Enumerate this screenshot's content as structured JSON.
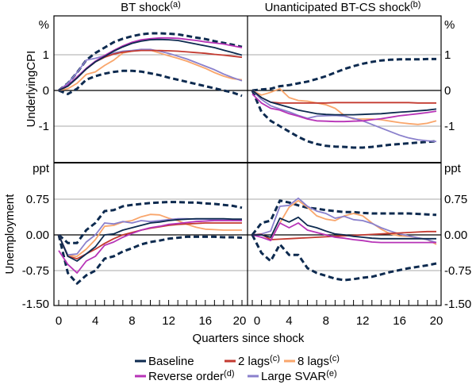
{
  "colors": {
    "Baseline": "#0d2a4f",
    "2 lags": "#c33a30",
    "8 lags": "#f9a66c",
    "Reverse order": "#b733b7",
    "Large SVAR": "#8a80cc",
    "bands": "#0d2a4f"
  },
  "x_axis": {
    "label": "Quarters since shock",
    "ticks": [
      0,
      4,
      8,
      12,
      16,
      20
    ],
    "range": [
      0,
      20
    ]
  },
  "legend": [
    {
      "name": "Baseline",
      "sup": ""
    },
    {
      "name": "2 lags",
      "sup": "(c)"
    },
    {
      "name": "8 lags",
      "sup": "(c)"
    },
    {
      "name": "Reverse order",
      "sup": "(d)"
    },
    {
      "name": "Large SVAR",
      "sup": "(e)"
    }
  ],
  "columns": [
    {
      "title": "BT shock",
      "sup": "(a)"
    },
    {
      "title": "Unanticipated BT-CS shock",
      "sup": "(b)"
    }
  ],
  "rows": [
    {
      "ylabel": "UnderlyingCPI",
      "unit": "%",
      "ticks": [
        "1",
        "0",
        "-1"
      ],
      "tick_values": [
        1,
        0,
        -1
      ],
      "ylim": [
        -2,
        2.1
      ]
    },
    {
      "ylabel": "Unemployment",
      "unit": "ppt",
      "ticks": [
        "0.75",
        "0.00",
        "-0.75",
        "-1.50"
      ],
      "tick_values": [
        0.75,
        0,
        -0.75,
        -1.5
      ],
      "ylim": [
        -1.5,
        1.5
      ]
    }
  ],
  "chart_data": [
    {
      "type": "line",
      "panel": "BT shock / UnderlyingCPI",
      "x": [
        0,
        1,
        2,
        3,
        4,
        5,
        6,
        7,
        8,
        9,
        10,
        11,
        12,
        13,
        14,
        15,
        16,
        17,
        18,
        19,
        20
      ],
      "bands": {
        "upper": [
          0,
          0.2,
          0.5,
          0.85,
          1.05,
          1.2,
          1.35,
          1.45,
          1.52,
          1.57,
          1.6,
          1.6,
          1.59,
          1.57,
          1.53,
          1.48,
          1.44,
          1.38,
          1.33,
          1.28,
          1.22
        ],
        "lower": [
          0,
          -0.1,
          0.05,
          0.3,
          0.4,
          0.47,
          0.52,
          0.55,
          0.55,
          0.53,
          0.48,
          0.43,
          0.36,
          0.3,
          0.24,
          0.18,
          0.12,
          0.06,
          0,
          -0.06,
          -0.15
        ]
      },
      "series": [
        {
          "name": "Baseline",
          "values": [
            0,
            0.12,
            0.35,
            0.6,
            0.8,
            0.95,
            1.1,
            1.22,
            1.32,
            1.38,
            1.42,
            1.43,
            1.42,
            1.4,
            1.35,
            1.3,
            1.25,
            1.2,
            1.13,
            1.06,
            0.99
          ]
        },
        {
          "name": "2 lags",
          "values": [
            0,
            0.12,
            0.35,
            0.6,
            0.8,
            0.93,
            1.02,
            1.07,
            1.1,
            1.12,
            1.12,
            1.12,
            1.11,
            1.1,
            1.08,
            1.06,
            1.04,
            1.01,
            0.99,
            0.96,
            0.93
          ]
        },
        {
          "name": "8 lags",
          "values": [
            0,
            0.05,
            0.2,
            0.45,
            0.52,
            0.7,
            0.85,
            1.05,
            1.1,
            1.15,
            1.13,
            1.05,
            0.97,
            0.9,
            0.82,
            0.72,
            0.62,
            0.5,
            0.4,
            0.33,
            0.3
          ]
        },
        {
          "name": "Reverse order",
          "values": [
            0,
            0.15,
            0.38,
            0.62,
            0.82,
            0.98,
            1.12,
            1.25,
            1.35,
            1.42,
            1.45,
            1.47,
            1.47,
            1.46,
            1.43,
            1.4,
            1.36,
            1.33,
            1.3,
            1.25,
            1.2
          ]
        },
        {
          "name": "Large SVAR",
          "values": [
            0,
            0.2,
            0.5,
            0.85,
            0.9,
            0.97,
            1.05,
            1.1,
            1.12,
            1.15,
            1.15,
            1.1,
            1.04,
            0.96,
            0.88,
            0.78,
            0.68,
            0.58,
            0.46,
            0.36,
            0.27
          ]
        }
      ]
    },
    {
      "type": "line",
      "panel": "Unanticipated BT-CS shock / UnderlyingCPI",
      "x": [
        0,
        1,
        2,
        3,
        4,
        5,
        6,
        7,
        8,
        9,
        10,
        11,
        12,
        13,
        14,
        15,
        16,
        17,
        18,
        19,
        20
      ],
      "bands": {
        "upper": [
          0,
          0.03,
          0.05,
          0.12,
          0.15,
          0.2,
          0.25,
          0.32,
          0.4,
          0.5,
          0.6,
          0.68,
          0.75,
          0.8,
          0.84,
          0.86,
          0.87,
          0.87,
          0.87,
          0.88,
          0.88
        ],
        "lower": [
          0,
          -0.6,
          -0.85,
          -1.0,
          -1.15,
          -1.3,
          -1.42,
          -1.5,
          -1.55,
          -1.57,
          -1.58,
          -1.6,
          -1.6,
          -1.58,
          -1.55,
          -1.52,
          -1.5,
          -1.48,
          -1.46,
          -1.44,
          -1.42
        ]
      },
      "series": [
        {
          "name": "Baseline",
          "values": [
            0,
            -0.2,
            -0.33,
            -0.4,
            -0.47,
            -0.55,
            -0.6,
            -0.65,
            -0.67,
            -0.68,
            -0.68,
            -0.68,
            -0.67,
            -0.66,
            -0.65,
            -0.63,
            -0.61,
            -0.59,
            -0.57,
            -0.55,
            -0.52
          ]
        },
        {
          "name": "2 lags",
          "values": [
            0,
            -0.2,
            -0.33,
            -0.35,
            -0.35,
            -0.35,
            -0.35,
            -0.35,
            -0.35,
            -0.34,
            -0.34,
            -0.34,
            -0.34,
            -0.34,
            -0.34,
            -0.34,
            -0.34,
            -0.34,
            -0.35,
            -0.35,
            -0.35
          ]
        },
        {
          "name": "8 lags",
          "values": [
            0,
            -0.13,
            -0.05,
            0.05,
            -0.2,
            -0.28,
            -0.3,
            -0.35,
            -0.4,
            -0.5,
            -0.7,
            -0.8,
            -0.8,
            -0.8,
            -0.82,
            -0.86,
            -0.9,
            -0.93,
            -0.95,
            -0.92,
            -0.85
          ]
        },
        {
          "name": "Reverse order",
          "values": [
            -0.1,
            -0.35,
            -0.5,
            -0.55,
            -0.65,
            -0.72,
            -0.8,
            -0.85,
            -0.86,
            -0.87,
            -0.87,
            -0.86,
            -0.85,
            -0.82,
            -0.79,
            -0.75,
            -0.71,
            -0.68,
            -0.65,
            -0.62,
            -0.58
          ]
        },
        {
          "name": "Large SVAR",
          "values": [
            0,
            -0.25,
            -0.43,
            -0.52,
            -0.6,
            -0.7,
            -0.78,
            -0.72,
            -0.71,
            -0.7,
            -0.72,
            -0.78,
            -0.85,
            -0.95,
            -1.05,
            -1.15,
            -1.25,
            -1.33,
            -1.38,
            -1.41,
            -1.43
          ]
        }
      ]
    },
    {
      "type": "line",
      "panel": "BT shock / Unemployment",
      "x": [
        0,
        1,
        2,
        3,
        4,
        5,
        6,
        7,
        8,
        9,
        10,
        11,
        12,
        13,
        14,
        15,
        16,
        17,
        18,
        19,
        20
      ],
      "bands": {
        "upper": [
          0,
          -0.17,
          -0.17,
          0.1,
          0.25,
          0.5,
          0.52,
          0.6,
          0.63,
          0.65,
          0.67,
          0.68,
          0.69,
          0.69,
          0.68,
          0.68,
          0.66,
          0.65,
          0.63,
          0.61,
          0.57
        ],
        "lower": [
          0,
          -0.8,
          -1.02,
          -0.85,
          -0.75,
          -0.5,
          -0.45,
          -0.35,
          -0.28,
          -0.2,
          -0.15,
          -0.12,
          -0.08,
          -0.06,
          -0.04,
          -0.04,
          -0.04,
          -0.04,
          -0.05,
          -0.05,
          -0.06
        ]
      },
      "series": [
        {
          "name": "Baseline",
          "values": [
            0,
            -0.45,
            -0.55,
            -0.4,
            -0.25,
            0,
            0.02,
            0.1,
            0.15,
            0.2,
            0.25,
            0.27,
            0.3,
            0.32,
            0.33,
            0.34,
            0.34,
            0.34,
            0.34,
            0.33,
            0.33
          ]
        },
        {
          "name": "2 lags",
          "values": [
            0,
            -0.45,
            -0.5,
            -0.4,
            -0.3,
            -0.18,
            -0.08,
            0,
            0.05,
            0.1,
            0.14,
            0.17,
            0.2,
            0.22,
            0.23,
            0.24,
            0.25,
            0.25,
            0.25,
            0.25,
            0.25
          ]
        },
        {
          "name": "8 lags",
          "values": [
            0,
            -0.43,
            -0.45,
            -0.3,
            -0.1,
            0.18,
            0.2,
            0.27,
            0.3,
            0.38,
            0.43,
            0.42,
            0.35,
            0.3,
            0.22,
            0.16,
            0.12,
            0.11,
            0.1,
            0.1,
            0.1
          ]
        },
        {
          "name": "Reverse order",
          "values": [
            -0.33,
            -0.62,
            -0.8,
            -0.55,
            -0.45,
            -0.22,
            -0.15,
            -0.05,
            0.03,
            0.1,
            0.15,
            0.18,
            0.22,
            0.24,
            0.26,
            0.28,
            0.29,
            0.3,
            0.3,
            0.3,
            0.3
          ]
        },
        {
          "name": "Large SVAR",
          "values": [
            0,
            -0.42,
            -0.4,
            -0.15,
            0,
            0.25,
            0.23,
            0.28,
            0.25,
            0.3,
            0.28,
            0.3,
            0.32,
            0.34,
            0.34,
            0.33,
            0.33,
            0.32,
            0.32,
            0.31,
            0.3
          ]
        }
      ]
    },
    {
      "type": "line",
      "panel": "Unanticipated BT-CS shock / Unemployment",
      "x": [
        0,
        1,
        2,
        3,
        4,
        5,
        6,
        7,
        8,
        9,
        10,
        11,
        12,
        13,
        14,
        15,
        16,
        17,
        18,
        19,
        20
      ],
      "bands": {
        "upper": [
          0,
          0.25,
          0.3,
          0.72,
          0.68,
          0.62,
          0.57,
          0.55,
          0.52,
          0.5,
          0.48,
          0.48,
          0.46,
          0.45,
          0.45,
          0.45,
          0.45,
          0.45,
          0.44,
          0.43,
          0.42
        ],
        "lower": [
          0,
          -0.38,
          -0.55,
          -0.2,
          -0.42,
          -0.42,
          -0.7,
          -0.8,
          -0.86,
          -0.92,
          -0.95,
          -0.93,
          -0.9,
          -0.88,
          -0.83,
          -0.78,
          -0.74,
          -0.7,
          -0.67,
          -0.64,
          -0.6
        ]
      },
      "series": [
        {
          "name": "Baseline",
          "values": [
            0,
            0,
            -0.05,
            0.35,
            0.27,
            0.37,
            0.2,
            0.15,
            0.08,
            0.02,
            0,
            -0.03,
            -0.05,
            -0.07,
            -0.08,
            -0.08,
            -0.08,
            -0.08,
            -0.08,
            -0.08,
            -0.08
          ]
        },
        {
          "name": "2 lags",
          "values": [
            0,
            0.01,
            -0.1,
            -0.09,
            -0.08,
            -0.07,
            -0.06,
            -0.05,
            -0.04,
            -0.03,
            -0.02,
            -0.01,
            0,
            0.01,
            0.02,
            0.03,
            0.04,
            0.05,
            0.06,
            0.07,
            0.07
          ]
        },
        {
          "name": "8 lags",
          "values": [
            0,
            0.02,
            -0.1,
            0.25,
            0.58,
            0.72,
            0.58,
            0.4,
            0.33,
            0.3,
            0.4,
            0.45,
            0.4,
            0.25,
            0.12,
            0.02,
            -0.02,
            -0.03,
            -0.06,
            -0.1,
            -0.2
          ]
        },
        {
          "name": "Reverse order",
          "values": [
            0,
            -0.05,
            -0.12,
            0.25,
            0.15,
            0.25,
            0.1,
            0.05,
            0,
            -0.05,
            -0.07,
            -0.1,
            -0.12,
            -0.15,
            -0.16,
            -0.16,
            -0.16,
            -0.16,
            -0.16,
            -0.16,
            -0.16
          ]
        },
        {
          "name": "Large SVAR",
          "values": [
            0,
            0.02,
            0.08,
            0.6,
            0.62,
            0.77,
            0.6,
            0.5,
            0.45,
            0.35,
            0.39,
            0.32,
            0.3,
            0.24,
            0.15,
            0.08,
            0.02,
            -0.02,
            -0.06,
            -0.1,
            -0.16
          ]
        }
      ]
    }
  ]
}
